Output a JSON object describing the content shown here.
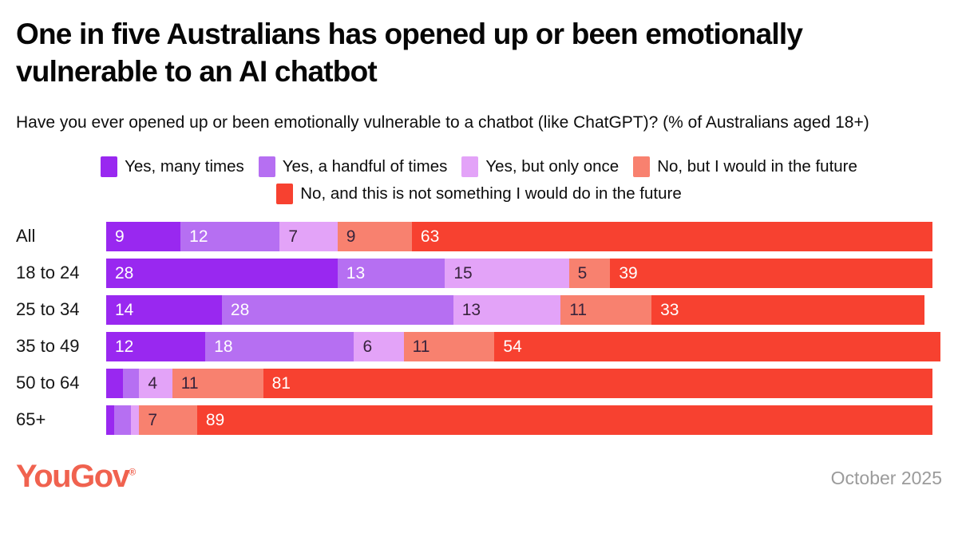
{
  "header": {
    "title": "One in five Australians has opened up or been emotionally vulnerable to an AI chatbot",
    "subtitle": "Have you ever opened up or been emotionally vulnerable to a chatbot (like ChatGPT)? (% of Australians aged 18+)"
  },
  "chart_data": {
    "type": "bar",
    "variant": "horizontal-stacked",
    "unit": "percent",
    "xlim": [
      0,
      100
    ],
    "grid": false,
    "legend_position": "top-center",
    "min_label_value": 4,
    "categories": [
      "All",
      "18 to 24",
      "25 to 34",
      "35 to 49",
      "50 to 64",
      "65+"
    ],
    "series": [
      {
        "name": "Yes, many times",
        "color": "#9928F0",
        "label_color": "#FFFFFF",
        "values": [
          9,
          28,
          14,
          12,
          2,
          1
        ]
      },
      {
        "name": "Yes, a handful of times",
        "color": "#B66FF2",
        "label_color": "#FFFFFF",
        "values": [
          12,
          13,
          28,
          18,
          2,
          2
        ]
      },
      {
        "name": "Yes, but only once",
        "color": "#E3A3F8",
        "label_color": "#38243C",
        "values": [
          7,
          15,
          13,
          6,
          4,
          1
        ]
      },
      {
        "name": "No, but I would in the future",
        "color": "#F8816F",
        "label_color": "#38243C",
        "values": [
          9,
          5,
          11,
          11,
          11,
          7
        ]
      },
      {
        "name": "No, and this is not something I would do in the future",
        "color": "#F74130",
        "label_color": "#FFFFFF",
        "values": [
          63,
          39,
          33,
          54,
          81,
          89
        ]
      }
    ]
  },
  "footer": {
    "logo": "YouGov",
    "registered_mark": "®",
    "date": "October 2025"
  }
}
